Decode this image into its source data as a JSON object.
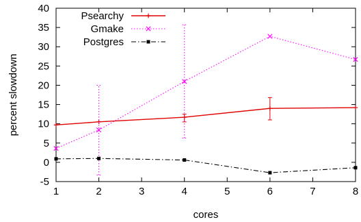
{
  "chart_data": {
    "type": "line",
    "title": "",
    "xlabel": "cores",
    "ylabel": "percent slowdown",
    "xlim": [
      1,
      8
    ],
    "ylim": [
      -5,
      40
    ],
    "xticks": [
      "1",
      "2",
      "3",
      "4",
      "5",
      "6",
      "7",
      "8"
    ],
    "yticks": [
      "-5",
      "0",
      "5",
      "10",
      "15",
      "20",
      "25",
      "30",
      "35",
      "40"
    ],
    "grid": false,
    "legend": "top-left",
    "series": [
      {
        "name": "Psearchy",
        "color": "#e00000",
        "style": "solid",
        "marker": "plus",
        "x": [
          1,
          2,
          4,
          6,
          8
        ],
        "y": [
          9.7,
          10.5,
          11.7,
          14.0,
          14.2
        ],
        "err": [
          {
            "x": 4,
            "low": 10.5,
            "high": 12.5
          },
          {
            "x": 6,
            "low": 11.0,
            "high": 16.8
          }
        ]
      },
      {
        "name": "Gmake",
        "color": "#ff00ff",
        "style": "dotted",
        "marker": "x",
        "x": [
          1,
          2,
          4,
          6,
          8
        ],
        "y": [
          3.6,
          8.4,
          21.0,
          32.7,
          26.7
        ],
        "err": [
          {
            "x": 2,
            "low": -3.3,
            "high": 20.0
          },
          {
            "x": 4,
            "low": 6.3,
            "high": 35.7
          }
        ]
      },
      {
        "name": "Postgres",
        "color": "#000000",
        "style": "dashdot",
        "marker": "square",
        "x": [
          1,
          2,
          4,
          6,
          8
        ],
        "y": [
          0.9,
          1.0,
          0.6,
          -2.7,
          -1.4
        ],
        "err": []
      }
    ]
  }
}
